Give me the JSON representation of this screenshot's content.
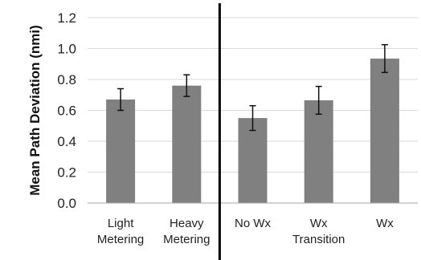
{
  "chart_data": {
    "type": "bar",
    "title": "",
    "xlabel": "",
    "ylabel": "Mean Path Deviation (nmi)",
    "ylim": [
      0.0,
      1.2
    ],
    "yticks": [
      0.0,
      0.2,
      0.4,
      0.6,
      0.8,
      1.0,
      1.2
    ],
    "ytick_labels": [
      "0.0",
      "0.2",
      "0.4",
      "0.6",
      "0.8",
      "1.0",
      "1.2"
    ],
    "grid": true,
    "bar_color": "#808080",
    "grid_color": "#d9d9d9",
    "error_bar_color": "#111111",
    "divider_color": "#000000",
    "divider_after_index": 1,
    "categories": [
      {
        "lines": [
          "Light",
          "Metering"
        ],
        "value": 0.67,
        "err_low": 0.07,
        "err_high": 0.07
      },
      {
        "lines": [
          "Heavy",
          "Metering"
        ],
        "value": 0.76,
        "err_low": 0.07,
        "err_high": 0.07
      },
      {
        "lines": [
          "No Wx",
          ""
        ],
        "value": 0.55,
        "err_low": 0.08,
        "err_high": 0.08
      },
      {
        "lines": [
          "Wx",
          "Transition"
        ],
        "value": 0.665,
        "err_low": 0.09,
        "err_high": 0.09
      },
      {
        "lines": [
          "Wx",
          ""
        ],
        "value": 0.935,
        "err_low": 0.09,
        "err_high": 0.09
      }
    ]
  }
}
